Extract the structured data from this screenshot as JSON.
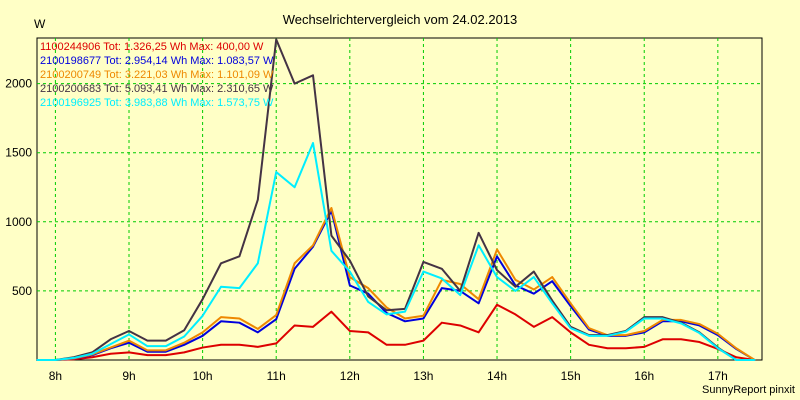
{
  "chart_data": {
    "type": "line",
    "title": "Wechselrichtervergleich vom 24.02.2013",
    "ylabel": "W",
    "xlabel": "",
    "footer": "SunnyReport pinxit",
    "grid": true,
    "legend_position": "top-left",
    "x_ticks": [
      "8h",
      "9h",
      "10h",
      "11h",
      "12h",
      "13h",
      "14h",
      "15h",
      "16h",
      "17h"
    ],
    "y_ticks": [
      "500",
      "1000",
      "1500",
      "2000"
    ],
    "xlim": [
      7.75,
      17.6
    ],
    "ylim": [
      0,
      2330
    ],
    "x": [
      7.75,
      8.0,
      8.25,
      8.5,
      8.75,
      9.0,
      9.25,
      9.5,
      9.75,
      10.0,
      10.25,
      10.5,
      10.75,
      11.0,
      11.25,
      11.5,
      11.75,
      12.0,
      12.25,
      12.5,
      12.75,
      13.0,
      13.25,
      13.5,
      13.75,
      14.0,
      14.25,
      14.5,
      14.75,
      15.0,
      15.25,
      15.5,
      15.75,
      16.0,
      16.25,
      16.5,
      16.75,
      17.0,
      17.25,
      17.5
    ],
    "series": [
      {
        "name": "1100244906 Tot: 1.326,25 Wh Max: 400,00 W",
        "color": "#dd0000",
        "values": [
          0,
          0,
          5,
          20,
          45,
          55,
          35,
          35,
          55,
          90,
          110,
          110,
          95,
          120,
          250,
          240,
          350,
          210,
          200,
          110,
          110,
          140,
          270,
          250,
          200,
          400,
          330,
          240,
          310,
          200,
          110,
          85,
          85,
          95,
          150,
          150,
          130,
          80,
          20,
          0
        ]
      },
      {
        "name": "2100198677 Tot: 2.954,14 Wh Max: 1.083,57 W",
        "color": "#0000dd",
        "values": [
          0,
          0,
          10,
          35,
          85,
          125,
          60,
          60,
          110,
          175,
          280,
          270,
          200,
          295,
          660,
          820,
          1080,
          540,
          480,
          340,
          280,
          300,
          520,
          500,
          410,
          750,
          540,
          480,
          570,
          390,
          220,
          175,
          175,
          200,
          280,
          280,
          250,
          180,
          80,
          0
        ]
      },
      {
        "name": "2100200749 Tot: 3.221,03 Wh Max: 1.101,09 W",
        "color": "#ee8800",
        "values": [
          0,
          0,
          12,
          40,
          90,
          140,
          70,
          70,
          125,
          200,
          310,
          300,
          225,
          325,
          700,
          830,
          1100,
          600,
          520,
          380,
          300,
          320,
          580,
          550,
          440,
          800,
          580,
          510,
          600,
          410,
          230,
          180,
          180,
          210,
          290,
          290,
          260,
          190,
          85,
          0
        ]
      },
      {
        "name": "2100200683 Tot: 5.093,41 Wh Max: 2.310,65 W",
        "color": "#443344",
        "values": [
          0,
          0,
          20,
          55,
          150,
          210,
          140,
          140,
          215,
          440,
          700,
          750,
          1160,
          2320,
          2000,
          2060,
          900,
          720,
          460,
          360,
          370,
          710,
          660,
          500,
          920,
          650,
          530,
          640,
          430,
          240,
          180,
          180,
          210,
          310,
          310,
          270,
          200,
          90,
          0,
          0
        ]
      },
      {
        "name": "2100196925 Tot: 3.983,88 Wh Max: 1.573,75 W",
        "color": "#00eeff",
        "values": [
          0,
          0,
          15,
          45,
          115,
          185,
          100,
          100,
          170,
          320,
          530,
          520,
          700,
          1360,
          1250,
          1570,
          790,
          640,
          420,
          330,
          350,
          640,
          590,
          470,
          830,
          600,
          500,
          600,
          410,
          230,
          175,
          175,
          205,
          300,
          300,
          265,
          195,
          85,
          0,
          0
        ]
      }
    ]
  }
}
